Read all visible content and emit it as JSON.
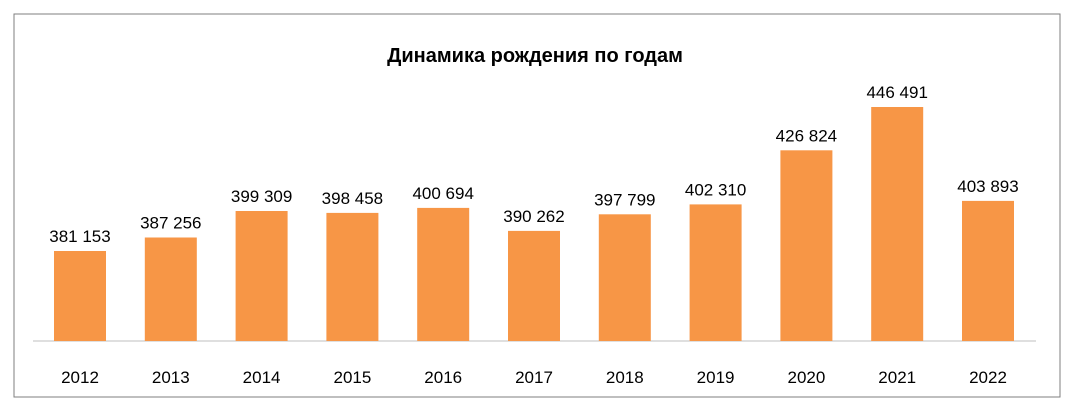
{
  "chart_data": {
    "type": "bar",
    "title": "Динамика рождения по годам",
    "categories": [
      "2012",
      "2013",
      "2014",
      "2015",
      "2016",
      "2017",
      "2018",
      "2019",
      "2020",
      "2021",
      "2022"
    ],
    "values": [
      381153,
      387256,
      399309,
      398458,
      400694,
      390262,
      397799,
      402310,
      426824,
      446491,
      403893
    ],
    "data_labels": [
      "381 153",
      "387 256",
      "399 309",
      "398 458",
      "400 694",
      "390 262",
      "397 799",
      "402 310",
      "426 824",
      "446 491",
      "403 893"
    ],
    "xlabel": "",
    "ylabel": "",
    "ylim": [
      300000,
      460000
    ],
    "grid": false,
    "legend": "none",
    "bar_color": "#F79646",
    "border_color": "#7F7F7F"
  }
}
